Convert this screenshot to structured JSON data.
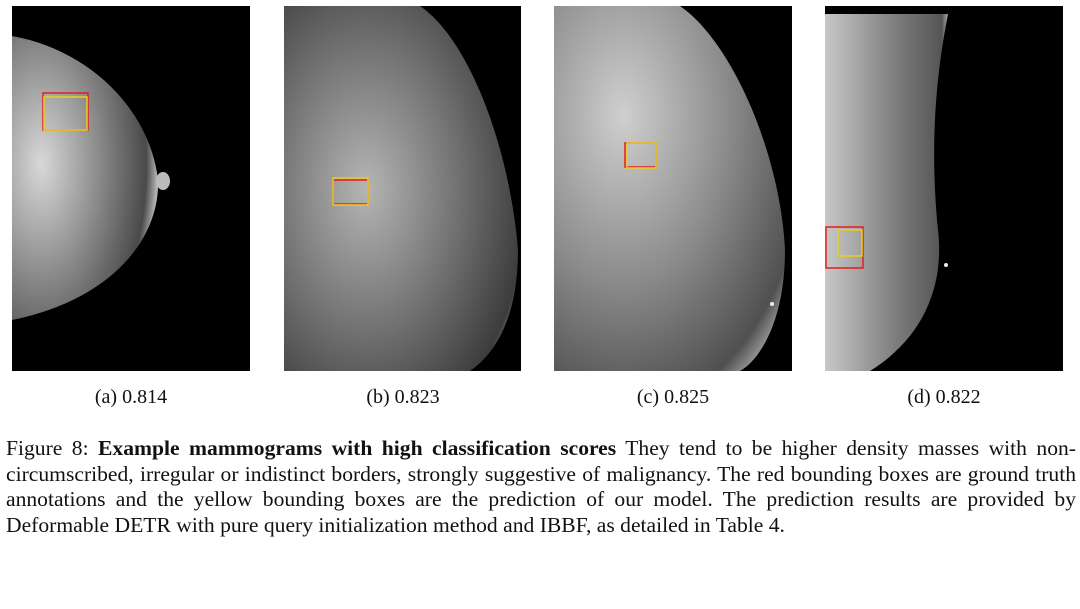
{
  "figure": {
    "panels": [
      {
        "label": "(a) 0.814"
      },
      {
        "label": "(b) 0.823"
      },
      {
        "label": "(c) 0.825"
      },
      {
        "label": "(d) 0.822"
      }
    ],
    "caption": {
      "number": "Figure 8:",
      "title": "Example mammograms with high classification scores",
      "text": "They tend to be higher density masses with non-circumscribed, irregular or indistinct borders, strongly suggestive of malignancy. The red bounding boxes are ground truth annotations and the yellow bounding boxes are the prediction of our model. The prediction results are provided by Deformable DETR with pure query initialization method and IBBF, as detailed in Table 4."
    }
  }
}
